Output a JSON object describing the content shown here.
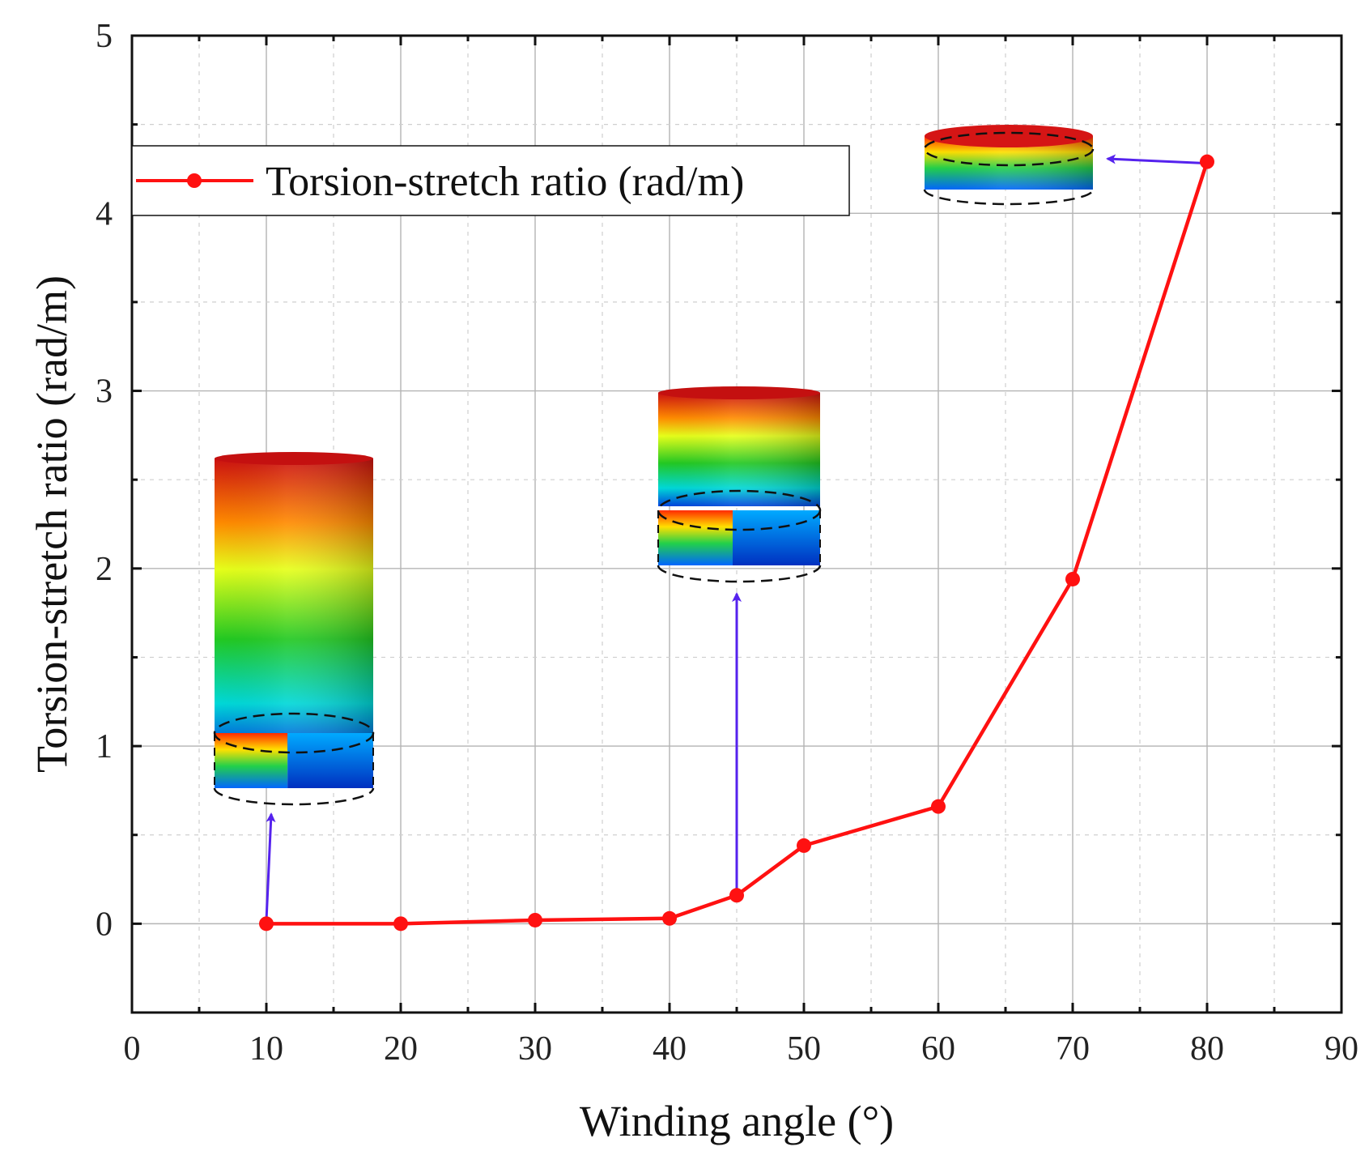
{
  "chart_data": {
    "type": "line",
    "title": "",
    "xlabel": "Winding angle (°)",
    "ylabel": "Torsion-stretch ratio (rad/m)",
    "xlim": [
      0,
      90
    ],
    "ylim": [
      -0.5,
      5
    ],
    "x_ticks": [
      0,
      10,
      20,
      30,
      40,
      50,
      60,
      70,
      80,
      90
    ],
    "y_ticks": [
      0,
      1,
      2,
      3,
      4,
      5
    ],
    "grid": true,
    "legend_position": "upper-left",
    "series": [
      {
        "name": "Torsion-stretch ratio (rad/m)",
        "color": "#ff1111",
        "marker": "circle",
        "x": [
          10,
          20,
          30,
          40,
          45,
          50,
          60,
          70,
          80
        ],
        "y": [
          0.0,
          0.0,
          0.02,
          0.03,
          0.16,
          0.44,
          0.66,
          1.94,
          4.29
        ]
      }
    ],
    "annotations": [
      {
        "type": "deformation-inset",
        "points_to_x": 10,
        "points_to_y": 0.0,
        "description": "tall cylinder"
      },
      {
        "type": "deformation-inset",
        "points_to_x": 45,
        "points_to_y": 0.16,
        "description": "medium cylinder"
      },
      {
        "type": "deformation-inset",
        "points_to_x": 80,
        "points_to_y": 4.29,
        "description": "flat cylinder"
      }
    ],
    "arrow_color": "#5522ee"
  }
}
